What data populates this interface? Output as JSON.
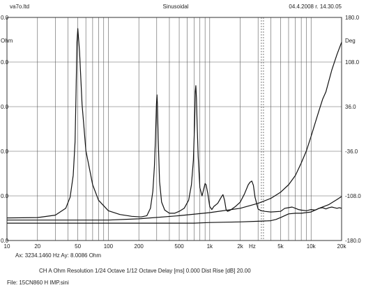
{
  "header": {
    "left": "va7o.ltd",
    "center": "Sinusoidal",
    "right": "04.4.2008 r. 14.30.05"
  },
  "axes": {
    "left_unit": "Ohm",
    "right_unit": "Deg",
    "x_unit": "Hz",
    "left_ticks": [
      "0.0",
      "0.0",
      "0.0",
      "0.0",
      "0.0",
      "0.0"
    ],
    "right_ticks": [
      "180.0",
      "108.0",
      "36.0",
      "-36.0",
      "-108.0",
      "-180.0"
    ],
    "x_ticks": [
      "10",
      "20",
      "50",
      "100",
      "200",
      "500",
      "1k",
      "2k",
      "5k",
      "10k",
      "20k"
    ]
  },
  "footer": {
    "cursor_readout": "Ax: 3234.1460 Hz   Ay: 8.0086 Ohm",
    "settings": "CH A   Ohm   Resolution 1/24 Octave   1/12 Octave   Delay [ms] 0.000    Dist Rise [dB] 20.00",
    "file": "File: 15CN860 H IMP.sini"
  },
  "chart_data": {
    "type": "line",
    "x_scale": "log",
    "xlim": [
      10,
      20000
    ],
    "x_ticks": [
      10,
      20,
      50,
      100,
      200,
      500,
      1000,
      2000,
      5000,
      10000,
      20000
    ],
    "y_left_ticks_printed": [
      "0.0",
      "0.0",
      "0.0",
      "0.0",
      "0.0",
      "0.0"
    ],
    "y_right_label": "Deg",
    "y_right_lim": [
      -180,
      180
    ],
    "y_right_ticks": [
      180,
      108,
      36,
      -36,
      -108,
      -180
    ],
    "grid": true,
    "cursor_x": 3234.146,
    "series": [
      {
        "role": "impedance",
        "x": [
          10,
          20,
          30,
          38,
          42,
          45,
          47,
          48,
          49,
          50,
          52,
          55,
          60,
          70,
          80,
          100,
          130,
          170,
          210,
          240,
          260,
          275,
          285,
          292,
          298,
          302,
          305,
          310,
          320,
          335,
          360,
          400,
          450,
          500,
          560,
          620,
          660,
          690,
          710,
          720,
          730,
          740,
          750,
          770,
          800,
          840,
          870,
          900,
          920,
          960,
          1000,
          1050,
          1100,
          1200,
          1300,
          1350,
          1400,
          1450,
          1500,
          1600,
          1800,
          2000,
          2200,
          2400,
          2500,
          2600,
          2700,
          2800,
          3000,
          3200,
          3500,
          4000,
          5000,
          5500,
          6000,
          6500,
          7000,
          7500,
          8000,
          9000,
          10000,
          11000,
          12000,
          13000,
          14000,
          15000,
          16000,
          17000,
          18000,
          19000,
          20000
        ],
        "y": [
          -143.5,
          -143,
          -139,
          -128,
          -110,
          -75,
          -20,
          60,
          140,
          162,
          125,
          40,
          -35,
          -90,
          -115,
          -132,
          -138,
          -141,
          -142,
          -140,
          -128,
          -100,
          -60,
          -12,
          40,
          55,
          40,
          -15,
          -85,
          -118,
          -131,
          -136,
          -136,
          -133,
          -128,
          -115,
          -90,
          -50,
          10,
          60,
          70,
          50,
          10,
          -45,
          -95,
          -108,
          -98,
          -88,
          -90,
          -105,
          -125,
          -130,
          -125,
          -120,
          -110,
          -106,
          -115,
          -130,
          -133,
          -131,
          -125,
          -118,
          -105,
          -90,
          -86,
          -84,
          -91,
          -110,
          -129,
          -132,
          -133,
          -134,
          -133,
          -128,
          -127,
          -126,
          -128,
          -130,
          -131,
          -132,
          -130,
          -131,
          -128,
          -127,
          -129,
          -127,
          -126,
          -127,
          -128,
          -127,
          -128
        ]
      },
      {
        "role": "phase",
        "x": [
          10,
          20,
          50,
          100,
          200,
          500,
          1000,
          2000,
          3000,
          4000,
          5000,
          6000,
          7000,
          8000,
          9000,
          10000,
          11000,
          12000,
          13000,
          14000,
          16000,
          18000,
          20000
        ],
        "y": [
          -147,
          -147,
          -147,
          -147,
          -145,
          -140,
          -135,
          -128,
          -120,
          -112,
          -102,
          -90,
          -75,
          -55,
          -35,
          -12,
          10,
          30,
          48,
          60,
          95,
          120,
          140
        ]
      },
      {
        "role": "third",
        "x": [
          10,
          20,
          50,
          100,
          200,
          500,
          700,
          1000,
          2000,
          3000,
          4000,
          4500,
          5000,
          6000,
          7000,
          8000,
          10000,
          12000,
          15000,
          18000,
          20000
        ],
        "y": [
          -152,
          -152,
          -152,
          -152,
          -152,
          -152,
          -152,
          -151,
          -150,
          -149,
          -148,
          -146,
          -143,
          -137,
          -136,
          -136,
          -134,
          -128,
          -122,
          -114,
          -109
        ]
      }
    ]
  }
}
